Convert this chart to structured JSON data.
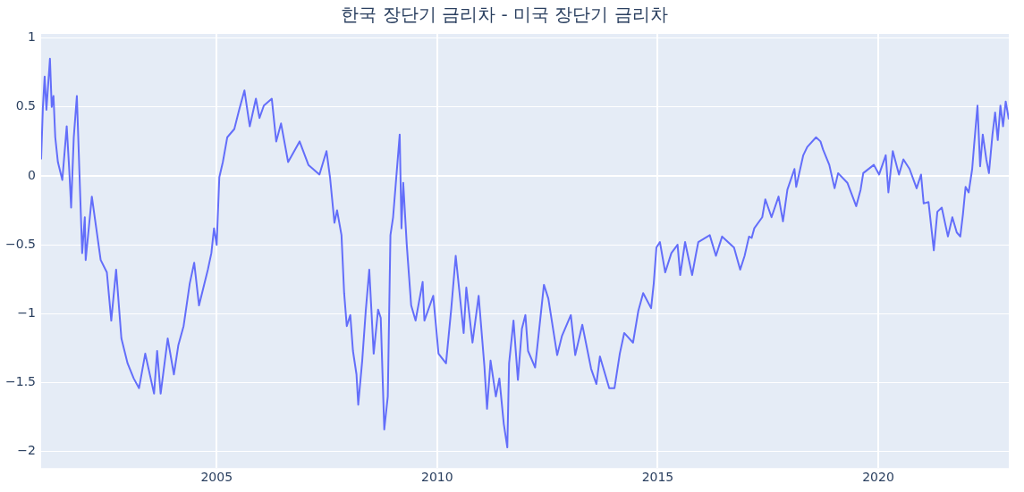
{
  "chart_data": {
    "type": "line",
    "title": "한국 장단기 금리차 - 미국 장단기 금리차",
    "x": [
      2001.02,
      2001.06,
      2001.1,
      2001.14,
      2001.22,
      2001.26,
      2001.3,
      2001.34,
      2001.4,
      2001.5,
      2001.6,
      2001.66,
      2001.7,
      2001.76,
      2001.83,
      2001.89,
      2001.95,
      2002.01,
      2002.03,
      2002.17,
      2002.27,
      2002.37,
      2002.51,
      2002.61,
      2002.72,
      2002.84,
      2002.98,
      2003.12,
      2003.24,
      2003.38,
      2003.58,
      2003.65,
      2003.73,
      2003.89,
      2004.03,
      2004.13,
      2004.25,
      2004.39,
      2004.49,
      2004.6,
      2004.8,
      2004.88,
      2004.94,
      2005.0,
      2005.06,
      2005.14,
      2005.24,
      2005.4,
      2005.51,
      2005.63,
      2005.75,
      2005.89,
      2005.97,
      2006.07,
      2006.25,
      2006.35,
      2006.46,
      2006.62,
      2006.88,
      2007.08,
      2007.33,
      2007.49,
      2007.57,
      2007.67,
      2007.73,
      2007.83,
      2007.89,
      2007.95,
      2008.03,
      2008.09,
      2008.17,
      2008.21,
      2008.3,
      2008.38,
      2008.46,
      2008.56,
      2008.66,
      2008.72,
      2008.8,
      2008.88,
      2008.94,
      2009.0,
      2009.15,
      2009.19,
      2009.23,
      2009.31,
      2009.41,
      2009.51,
      2009.67,
      2009.71,
      2009.91,
      2010.03,
      2010.2,
      2010.32,
      2010.42,
      2010.6,
      2010.66,
      2010.8,
      2010.94,
      2011.07,
      2011.13,
      2011.21,
      2011.33,
      2011.41,
      2011.51,
      2011.59,
      2011.63,
      2011.73,
      2011.83,
      2011.92,
      2012.0,
      2012.06,
      2012.22,
      2012.42,
      2012.52,
      2012.72,
      2012.83,
      2013.03,
      2013.13,
      2013.29,
      2013.49,
      2013.61,
      2013.69,
      2013.9,
      2014.02,
      2014.14,
      2014.24,
      2014.44,
      2014.56,
      2014.67,
      2014.85,
      2014.91,
      2014.97,
      2015.05,
      2015.17,
      2015.31,
      2015.45,
      2015.51,
      2015.62,
      2015.78,
      2015.86,
      2015.92,
      2016.18,
      2016.32,
      2016.46,
      2016.73,
      2016.87,
      2016.97,
      2017.07,
      2017.13,
      2017.19,
      2017.37,
      2017.44,
      2017.58,
      2017.74,
      2017.84,
      2017.94,
      2018.1,
      2018.14,
      2018.3,
      2018.39,
      2018.59,
      2018.69,
      2018.75,
      2018.89,
      2019.01,
      2019.09,
      2019.3,
      2019.5,
      2019.6,
      2019.66,
      2019.9,
      2020.02,
      2020.17,
      2020.23,
      2020.33,
      2020.47,
      2020.57,
      2020.71,
      2020.87,
      2020.97,
      2021.03,
      2021.14,
      2021.26,
      2021.34,
      2021.44,
      2021.58,
      2021.68,
      2021.78,
      2021.86,
      2021.92,
      2021.98,
      2022.05,
      2022.13,
      2022.17,
      2022.25,
      2022.31,
      2022.37,
      2022.45,
      2022.51,
      2022.59,
      2022.65,
      2022.71,
      2022.77,
      2022.83,
      2022.89,
      2022.96
    ],
    "series": [
      {
        "color": "#636efa",
        "values": [
          0.12,
          0.5,
          0.72,
          0.48,
          0.85,
          0.5,
          0.58,
          0.28,
          0.1,
          -0.03,
          0.36,
          0.03,
          -0.23,
          0.28,
          0.58,
          0.01,
          -0.56,
          -0.3,
          -0.61,
          -0.15,
          -0.38,
          -0.61,
          -0.7,
          -1.05,
          -0.68,
          -1.18,
          -1.36,
          -1.47,
          -1.54,
          -1.29,
          -1.58,
          -1.27,
          -1.58,
          -1.18,
          -1.44,
          -1.23,
          -1.09,
          -0.78,
          -0.63,
          -0.94,
          -0.68,
          -0.56,
          -0.38,
          -0.5,
          -0.01,
          0.1,
          0.28,
          0.34,
          0.48,
          0.62,
          0.36,
          0.56,
          0.42,
          0.51,
          0.56,
          0.25,
          0.38,
          0.1,
          0.25,
          0.08,
          0.01,
          0.18,
          -0.01,
          -0.34,
          -0.25,
          -0.43,
          -0.85,
          -1.09,
          -1.01,
          -1.27,
          -1.44,
          -1.66,
          -1.34,
          -0.98,
          -0.68,
          -1.29,
          -0.97,
          -1.03,
          -1.84,
          -1.6,
          -0.43,
          -0.3,
          0.3,
          -0.38,
          -0.05,
          -0.5,
          -0.94,
          -1.05,
          -0.77,
          -1.05,
          -0.87,
          -1.29,
          -1.36,
          -0.96,
          -0.58,
          -1.14,
          -0.81,
          -1.21,
          -0.87,
          -1.38,
          -1.69,
          -1.34,
          -1.6,
          -1.47,
          -1.8,
          -1.97,
          -1.36,
          -1.05,
          -1.48,
          -1.11,
          -1.01,
          -1.27,
          -1.39,
          -0.79,
          -0.89,
          -1.3,
          -1.16,
          -1.01,
          -1.3,
          -1.08,
          -1.4,
          -1.51,
          -1.31,
          -1.54,
          -1.54,
          -1.29,
          -1.14,
          -1.21,
          -0.98,
          -0.85,
          -0.96,
          -0.78,
          -0.52,
          -0.48,
          -0.7,
          -0.56,
          -0.5,
          -0.72,
          -0.48,
          -0.72,
          -0.58,
          -0.48,
          -0.43,
          -0.58,
          -0.44,
          -0.52,
          -0.68,
          -0.58,
          -0.44,
          -0.45,
          -0.38,
          -0.3,
          -0.17,
          -0.3,
          -0.15,
          -0.33,
          -0.1,
          0.05,
          -0.08,
          0.15,
          0.21,
          0.28,
          0.25,
          0.19,
          0.08,
          -0.09,
          0.02,
          -0.05,
          -0.22,
          -0.1,
          0.02,
          0.08,
          0.01,
          0.15,
          -0.12,
          0.18,
          0.01,
          0.12,
          0.05,
          -0.09,
          0.01,
          -0.2,
          -0.19,
          -0.54,
          -0.26,
          -0.23,
          -0.44,
          -0.3,
          -0.41,
          -0.44,
          -0.28,
          -0.08,
          -0.12,
          0.05,
          0.21,
          0.51,
          0.07,
          0.3,
          0.12,
          0.02,
          0.3,
          0.46,
          0.26,
          0.51,
          0.36,
          0.54,
          0.41
        ]
      }
    ],
    "xlim": [
      2001.02,
      2022.96
    ],
    "ylim": [
      -2.12,
      1.03
    ],
    "xticks": [
      2005,
      2010,
      2015,
      2020
    ],
    "yticks": [
      {
        "value": -2,
        "label": "−2"
      },
      {
        "value": -1.5,
        "label": "−1.5"
      },
      {
        "value": -1,
        "label": "−1"
      },
      {
        "value": -0.5,
        "label": "−0.5"
      },
      0,
      0.5,
      1
    ],
    "grid": true
  }
}
